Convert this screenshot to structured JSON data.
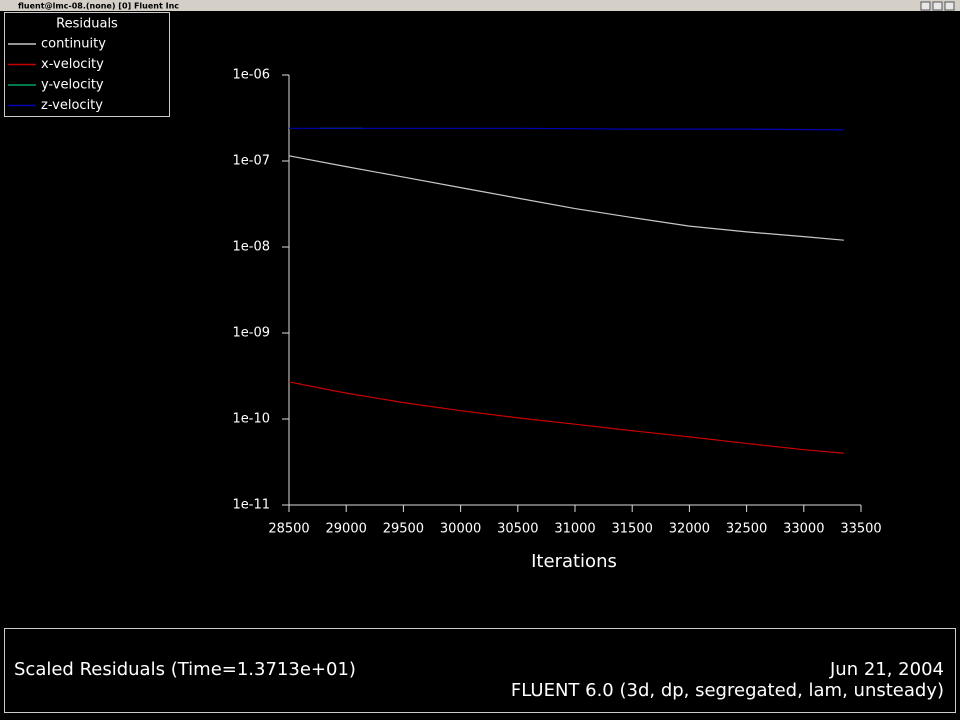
{
  "window": {
    "title": "fluent@lmc-08.(none) [0] Fluent Inc"
  },
  "chart_data": {
    "type": "line",
    "title": "Scaled Residuals  (Time=1.3713e+01)",
    "xlabel": "Iterations",
    "legend_title": "Residuals",
    "legend": "top-left",
    "yscale": "log",
    "xlim": [
      28500,
      33500
    ],
    "xticks": [
      28500,
      29000,
      29500,
      30000,
      30500,
      31000,
      31500,
      32000,
      32500,
      33000,
      33500
    ],
    "ylim": [
      1e-11,
      1e-06
    ],
    "yticks": [
      {
        "value": 1e-11,
        "label": "1e-11"
      },
      {
        "value": 1e-10,
        "label": "1e-10"
      },
      {
        "value": 1e-09,
        "label": "1e-09"
      },
      {
        "value": 1e-08,
        "label": "1e-08"
      },
      {
        "value": 1e-07,
        "label": "1e-07"
      },
      {
        "value": 1e-06,
        "label": "1e-06"
      }
    ],
    "series": [
      {
        "name": "continuity",
        "color": "#c8c8c8",
        "x": [
          28500,
          29000,
          29500,
          30000,
          30500,
          31000,
          31500,
          32000,
          32500,
          33000,
          33350
        ],
        "values": [
          1.15e-07,
          8.6e-08,
          6.5e-08,
          4.9e-08,
          3.7e-08,
          2.8e-08,
          2.2e-08,
          1.75e-08,
          1.5e-08,
          1.32e-08,
          1.2e-08
        ]
      },
      {
        "name": "x-velocity",
        "color": "#c80000",
        "x": [
          28500,
          29000,
          29500,
          30000,
          30500,
          31000,
          31500,
          32000,
          32500,
          33000,
          33350
        ],
        "values": [
          2.7e-10,
          2e-10,
          1.55e-10,
          1.25e-10,
          1.03e-10,
          8.7e-11,
          7.3e-11,
          6.2e-11,
          5.2e-11,
          4.4e-11,
          4e-11
        ]
      },
      {
        "name": "y-velocity",
        "color": "#00a060",
        "x": [
          28770,
          29140
        ],
        "values": [
          2.4e-07,
          2.4e-07
        ]
      },
      {
        "name": "z-velocity",
        "color": "#0000b4",
        "x": [
          28500,
          29500,
          30500,
          31500,
          32500,
          33350
        ],
        "values": [
          2.4e-07,
          2.4e-07,
          2.4e-07,
          2.35e-07,
          2.35e-07,
          2.3e-07
        ]
      }
    ]
  },
  "footer": {
    "date": "Jun 21, 2004",
    "version": "FLUENT 6.0 (3d, dp, segregated, lam, unsteady)"
  }
}
